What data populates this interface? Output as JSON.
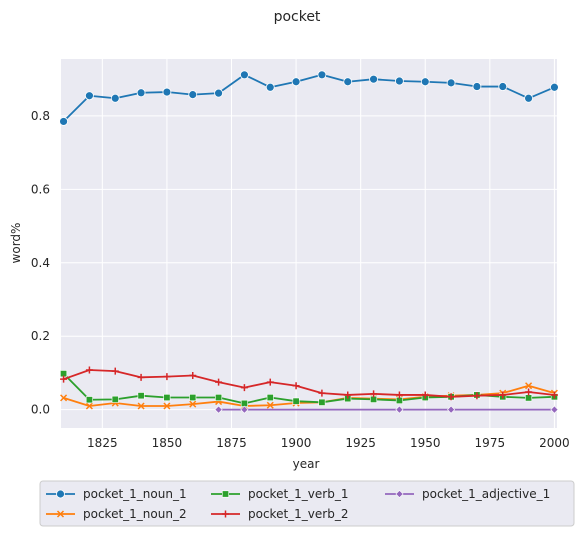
{
  "chart_data": {
    "type": "line",
    "title": "pocket",
    "xlabel": "year",
    "ylabel": "word%",
    "xlim": [
      1809,
      2001
    ],
    "ylim": [
      -0.05,
      0.955
    ],
    "xticks": [
      1825,
      1850,
      1875,
      1900,
      1925,
      1950,
      1975,
      2000
    ],
    "yticks": [
      0.0,
      0.2,
      0.4,
      0.6,
      0.8
    ],
    "ytick_labels": [
      "0.0",
      "0.2",
      "0.4",
      "0.6",
      "0.8"
    ],
    "grid": true,
    "legend_position": "bottom",
    "series": [
      {
        "name": "pocket_1_noun_1",
        "color": "#1f77b4",
        "marker": "circle",
        "x": [
          1810,
          1820,
          1830,
          1840,
          1850,
          1860,
          1870,
          1880,
          1890,
          1900,
          1910,
          1920,
          1930,
          1940,
          1950,
          1960,
          1970,
          1980,
          1990,
          2000
        ],
        "y": [
          0.785,
          0.855,
          0.848,
          0.863,
          0.865,
          0.858,
          0.862,
          0.912,
          0.878,
          0.893,
          0.912,
          0.893,
          0.9,
          0.895,
          0.893,
          0.89,
          0.88,
          0.88,
          0.848,
          0.878
        ]
      },
      {
        "name": "pocket_1_noun_2",
        "color": "#ff7f0e",
        "marker": "x",
        "x": [
          1810,
          1820,
          1830,
          1840,
          1850,
          1860,
          1870,
          1880,
          1890,
          1900,
          1910,
          1920,
          1930,
          1940,
          1950,
          1960,
          1970,
          1980,
          1990,
          2000
        ],
        "y": [
          0.032,
          0.01,
          0.018,
          0.01,
          0.01,
          0.015,
          0.022,
          0.01,
          0.012,
          0.018,
          0.02,
          0.032,
          0.03,
          0.028,
          0.035,
          0.038,
          0.04,
          0.045,
          0.065,
          0.045
        ]
      },
      {
        "name": "pocket_1_verb_1",
        "color": "#2ca02c",
        "marker": "square",
        "x": [
          1810,
          1820,
          1830,
          1840,
          1850,
          1860,
          1870,
          1880,
          1890,
          1900,
          1910,
          1920,
          1930,
          1940,
          1950,
          1960,
          1970,
          1980,
          1990,
          2000
        ],
        "y": [
          0.098,
          0.027,
          0.028,
          0.038,
          0.033,
          0.033,
          0.033,
          0.017,
          0.033,
          0.023,
          0.02,
          0.03,
          0.028,
          0.025,
          0.033,
          0.035,
          0.04,
          0.035,
          0.032,
          0.035
        ]
      },
      {
        "name": "pocket_1_verb_2",
        "color": "#d62728",
        "marker": "plus",
        "x": [
          1810,
          1820,
          1830,
          1840,
          1850,
          1860,
          1870,
          1880,
          1890,
          1900,
          1910,
          1920,
          1930,
          1940,
          1950,
          1960,
          1970,
          1980,
          1990,
          2000
        ],
        "y": [
          0.083,
          0.108,
          0.105,
          0.088,
          0.09,
          0.093,
          0.075,
          0.06,
          0.075,
          0.065,
          0.045,
          0.04,
          0.043,
          0.04,
          0.04,
          0.035,
          0.038,
          0.04,
          0.048,
          0.04
        ]
      },
      {
        "name": "pocket_1_adjective_1",
        "color": "#9467bd",
        "marker": "diamond",
        "x": [
          1870,
          1880,
          1890,
          1900,
          1910,
          1920,
          1930,
          1940,
          1950,
          1960,
          1970,
          1980,
          1990,
          2000
        ],
        "y": [
          0.0,
          0.0,
          0.0,
          0.0,
          0.0,
          0.0,
          0.0,
          0.0,
          0.0,
          0.0,
          0.0,
          0.0,
          0.0,
          0.0
        ],
        "marker_at": [
          1870,
          1880,
          1940,
          1960,
          2000
        ]
      }
    ]
  }
}
